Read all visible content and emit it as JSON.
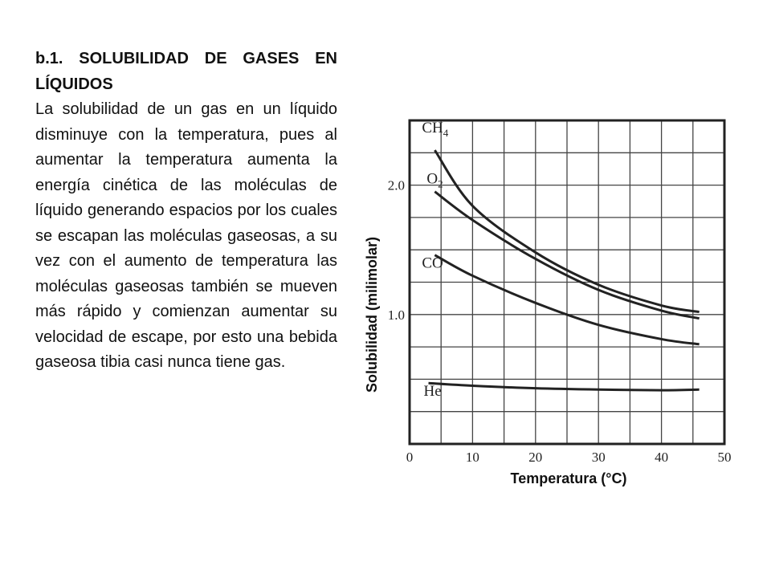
{
  "document": {
    "heading": "b.1. SOLUBILIDAD DE GASES EN LÍQUIDOS",
    "paragraph": "La solubilidad de un gas en un líquido disminuye con la temperatura, pues al aumentar la temperatura aumenta la energía cinética de las moléculas de líquido generando espacios por los cuales se escapan las moléculas gaseosas, a su vez con el aumento de temperatura las moléculas gaseosas también se mueven más rápido y comienzan aumentar su velocidad de escape, por esto una bebida gaseosa tibia casi nunca tiene gas."
  },
  "chart_data": {
    "type": "line",
    "title": "",
    "xlabel": "Temperatura (°C)",
    "ylabel": "Solubilidad (milimolar)",
    "xlim": [
      0,
      50
    ],
    "ylim": [
      0,
      2.5
    ],
    "xticks": [
      "0",
      "10",
      "20",
      "30",
      "40",
      "50"
    ],
    "yticks": [
      {
        "value": 1.0,
        "label": "1.0"
      },
      {
        "value": 2.0,
        "label": "2.0"
      }
    ],
    "grid": true,
    "line_color": "#222222",
    "series": [
      {
        "name": "CH",
        "sub": "4",
        "x": [
          4,
          10,
          20,
          30,
          40,
          46
        ],
        "y": [
          2.27,
          1.84,
          1.48,
          1.23,
          1.07,
          1.02
        ]
      },
      {
        "name": "O",
        "sub": "2",
        "x": [
          4,
          10,
          20,
          30,
          40,
          46
        ],
        "y": [
          1.95,
          1.73,
          1.43,
          1.19,
          1.03,
          0.97
        ]
      },
      {
        "name": "CO",
        "sub": "",
        "x": [
          4,
          10,
          20,
          30,
          40,
          46
        ],
        "y": [
          1.46,
          1.3,
          1.09,
          0.92,
          0.81,
          0.77
        ]
      },
      {
        "name": "He",
        "sub": "",
        "x": [
          3,
          10,
          20,
          30,
          40,
          46
        ],
        "y": [
          0.47,
          0.45,
          0.43,
          0.42,
          0.415,
          0.42
        ]
      }
    ]
  }
}
